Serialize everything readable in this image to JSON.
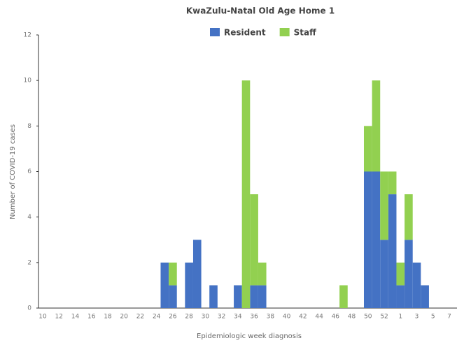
{
  "chart_data": {
    "type": "bar",
    "stacked": true,
    "title": "KwaZulu-Natal Old Age Home 1",
    "x_label": "Epidemiologic week diagnosis",
    "y_label": "Number of COVID-19 cases",
    "categories": [
      "10",
      null,
      "12",
      null,
      "14",
      null,
      "16",
      null,
      "18",
      null,
      "20",
      null,
      "22",
      null,
      "24",
      null,
      "26",
      null,
      "28",
      null,
      "30",
      null,
      "32",
      null,
      "34",
      null,
      "36",
      null,
      "38",
      null,
      "40",
      null,
      "42",
      null,
      "44",
      null,
      "46",
      null,
      "48",
      null,
      "50",
      null,
      "52",
      null,
      "1",
      null,
      "3",
      null,
      "5",
      null,
      "7"
    ],
    "series": [
      {
        "name": "Resident",
        "color": "#4472c4",
        "values": [
          0,
          0,
          0,
          0,
          0,
          0,
          0,
          0,
          0,
          0,
          0,
          0,
          0,
          0,
          0,
          2,
          1,
          0,
          2,
          3,
          0,
          1,
          0,
          0,
          1,
          0,
          1,
          1,
          0,
          0,
          0,
          0,
          0,
          0,
          0,
          0,
          0,
          0,
          0,
          0,
          6,
          6,
          3,
          5,
          1,
          3,
          2,
          1,
          0,
          0,
          0
        ]
      },
      {
        "name": "Staff",
        "color": "#92d050",
        "values": [
          0,
          0,
          0,
          0,
          0,
          0,
          0,
          0,
          0,
          0,
          0,
          0,
          0,
          0,
          0,
          0,
          1,
          0,
          0,
          0,
          0,
          0,
          0,
          0,
          0,
          10,
          4,
          1,
          0,
          0,
          0,
          0,
          0,
          0,
          0,
          0,
          0,
          1,
          0,
          0,
          2,
          4,
          3,
          1,
          1,
          2,
          0,
          0,
          0,
          0,
          0
        ]
      }
    ],
    "ylim": [
      0,
      12
    ],
    "yticks": [
      0,
      2,
      4,
      6,
      8,
      10,
      12
    ],
    "grid": false,
    "legend": "top"
  }
}
